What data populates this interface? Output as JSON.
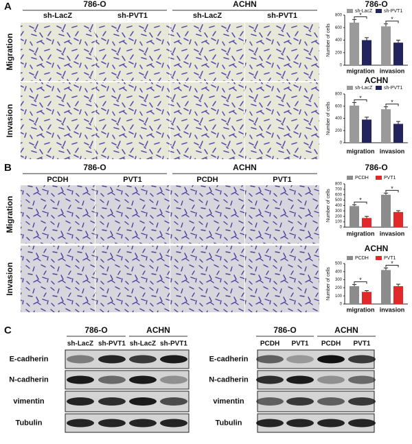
{
  "panel_labels": [
    "A",
    "B",
    "C"
  ],
  "panel_a": {
    "groups": [
      "786-O",
      "ACHN"
    ],
    "conditions": [
      "sh-LacZ",
      "sh-PVT1",
      "sh-LacZ",
      "sh-PVT1"
    ],
    "rows": [
      "Migration",
      "Invasion"
    ]
  },
  "panel_b": {
    "groups": [
      "786-O",
      "ACHN"
    ],
    "conditions": [
      "PCDH",
      "PVT1",
      "PCDH",
      "PVT1"
    ],
    "rows": [
      "Migration",
      "Invasion"
    ]
  },
  "panel_c": {
    "left": {
      "groups": [
        "786-O",
        "ACHN"
      ],
      "conditions": [
        "sh-LacZ",
        "sh-PVT1",
        "sh-LacZ",
        "sh-PVT1"
      ],
      "proteins": [
        "E-cadherin",
        "N-cadherin",
        "vimentin",
        "Tubulin"
      ]
    },
    "right": {
      "groups": [
        "786-O",
        "ACHN"
      ],
      "conditions": [
        "PCDH",
        "PVT1",
        "PCDH",
        "PVT1"
      ],
      "proteins": [
        "E-cadherin",
        "N-cadherin",
        "vimentin",
        "Tubulin"
      ]
    }
  },
  "chart_data": [
    {
      "type": "bar",
      "title": "786-O",
      "y_label": "Number of cells",
      "categories": [
        "migration",
        "invasion"
      ],
      "series": [
        {
          "name": "sh-LacZ",
          "color": "#9a9a9a",
          "values": [
            680,
            620
          ],
          "errors": [
            50,
            40
          ]
        },
        {
          "name": "sh-PVT1",
          "color": "#23235e",
          "values": [
            400,
            360
          ],
          "errors": [
            40,
            40
          ]
        }
      ],
      "ylim": [
        0,
        800
      ],
      "yticks": [
        0,
        200,
        400,
        600,
        800
      ],
      "annotations": [
        "*",
        "*"
      ]
    },
    {
      "type": "bar",
      "title": "ACHN",
      "y_label": "Number of cells",
      "categories": [
        "migration",
        "invasion"
      ],
      "series": [
        {
          "name": "sh-LacZ",
          "color": "#9a9a9a",
          "values": [
            610,
            550
          ],
          "errors": [
            50,
            40
          ]
        },
        {
          "name": "sh-PVT1",
          "color": "#23235e",
          "values": [
            380,
            310
          ],
          "errors": [
            40,
            40
          ]
        }
      ],
      "ylim": [
        0,
        800
      ],
      "yticks": [
        0,
        200,
        400,
        600,
        800
      ],
      "annotations": [
        "*",
        "*"
      ]
    },
    {
      "type": "bar",
      "title": "786-O",
      "y_label": "Number of cells",
      "categories": [
        "migration",
        "invasion"
      ],
      "series": [
        {
          "name": "PCDH",
          "color": "#8c8c8c",
          "values": [
            390,
            600
          ],
          "errors": [
            25,
            30
          ]
        },
        {
          "name": "PVT1",
          "color": "#e02a2a",
          "values": [
            170,
            280
          ],
          "errors": [
            30,
            25
          ]
        }
      ],
      "ylim": [
        0,
        800
      ],
      "yticks": [
        0,
        100,
        200,
        300,
        400,
        500,
        600,
        700,
        800
      ],
      "annotations": [
        "*",
        "*"
      ]
    },
    {
      "type": "bar",
      "title": "ACHN",
      "y_label": "Number of cells",
      "categories": [
        "migration",
        "invasion"
      ],
      "series": [
        {
          "name": "PCDH",
          "color": "#8c8c8c",
          "values": [
            220,
            420
          ],
          "errors": [
            20,
            25
          ]
        },
        {
          "name": "PVT1",
          "color": "#e02a2a",
          "values": [
            150,
            220
          ],
          "errors": [
            15,
            25
          ]
        }
      ],
      "ylim": [
        0,
        500
      ],
      "yticks": [
        0,
        100,
        200,
        300,
        400,
        500
      ],
      "annotations": [
        "*",
        "*"
      ]
    }
  ]
}
